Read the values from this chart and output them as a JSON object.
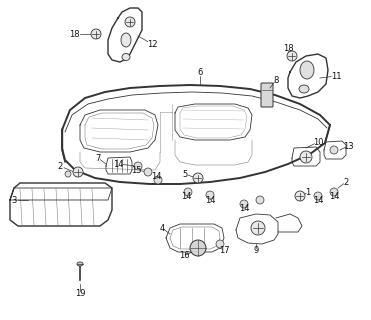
{
  "background_color": "#ffffff",
  "fig_width": 3.71,
  "fig_height": 3.2,
  "dpi": 100,
  "line_color": "#333333",
  "label_color": "#111111",
  "label_fontsize": 6.0
}
